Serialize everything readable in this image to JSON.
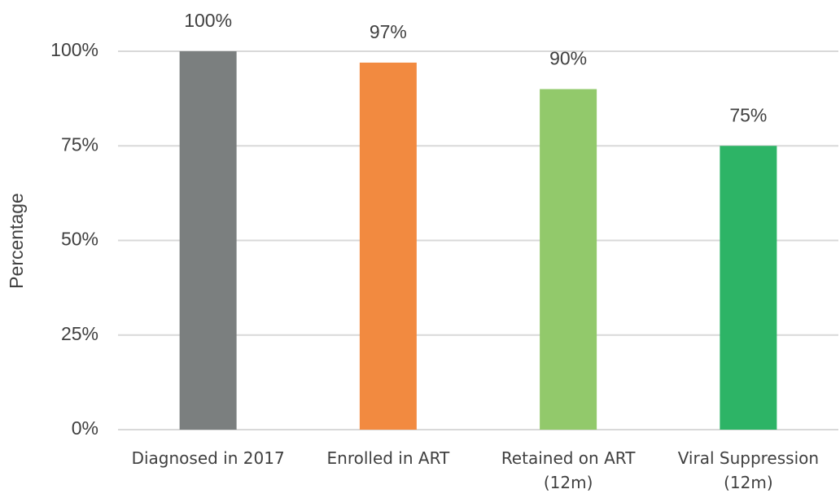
{
  "chart_data": {
    "type": "bar",
    "y_label": "Percentage",
    "categories": [
      "Diagnosed in 2017",
      "Enrolled in ART",
      "Retained on ART (12m)",
      "Viral Suppression (12m)"
    ],
    "values": [
      100,
      97,
      90,
      75
    ],
    "value_labels": [
      "100%",
      "97%",
      "90%",
      "75%"
    ],
    "colors": [
      "#7b7f7f",
      "#f28a40",
      "#92c96b",
      "#2db466"
    ],
    "ylim": [
      0,
      100
    ],
    "yticks": [
      {
        "value": 0,
        "label": "0%"
      },
      {
        "value": 25,
        "label": "25%"
      },
      {
        "value": 50,
        "label": "50%"
      },
      {
        "value": 75,
        "label": "75%"
      },
      {
        "value": 100,
        "label": "100%"
      }
    ],
    "grid": true
  }
}
